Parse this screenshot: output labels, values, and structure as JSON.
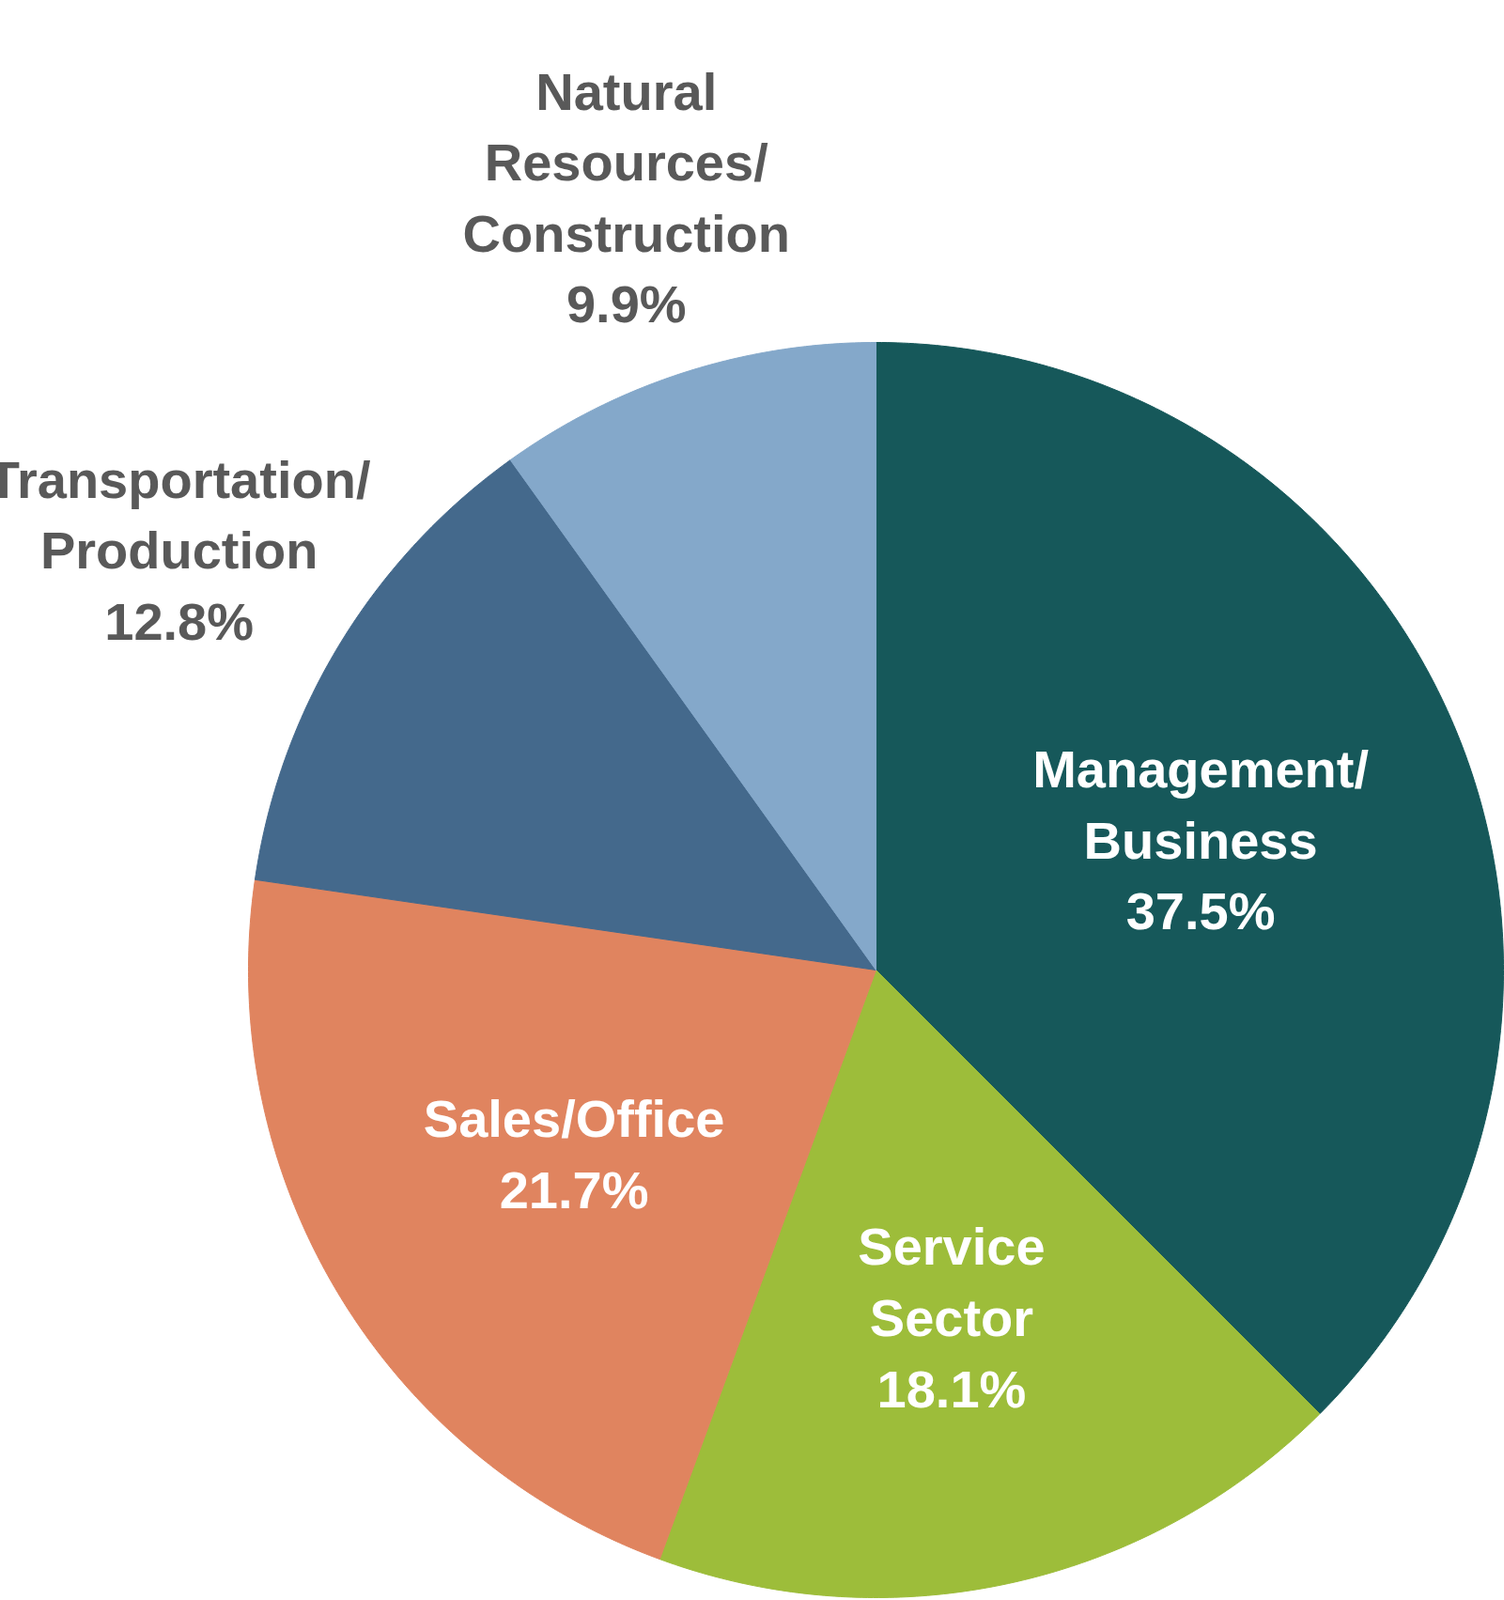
{
  "chart_data": {
    "type": "pie",
    "categories": [
      "Management/\nBusiness",
      "Service\nSector",
      "Sales/Office",
      "Transportation/\nProduction",
      "Natural\nResources/\nConstruction"
    ],
    "values": [
      37.5,
      18.1,
      21.7,
      12.8,
      9.9
    ],
    "value_labels": [
      "37.5%",
      "18.1%",
      "21.7%",
      "12.8%",
      "9.9%"
    ],
    "colors": [
      "#16585a",
      "#9dbd3a",
      "#e0845f",
      "#44698c",
      "#84a8ca"
    ],
    "data_labels": true
  }
}
